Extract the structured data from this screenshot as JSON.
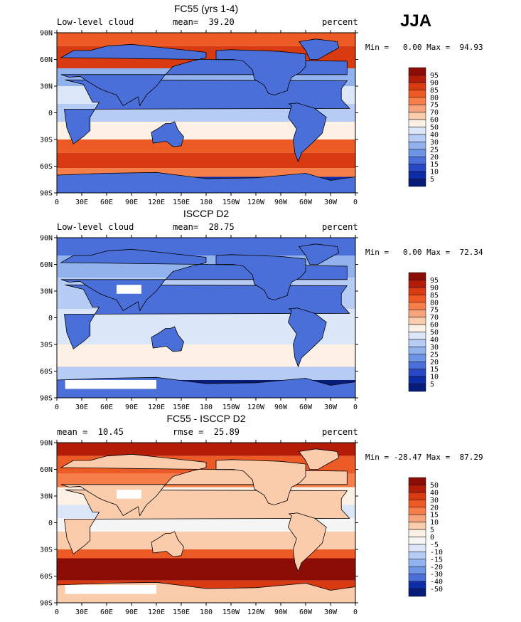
{
  "season": "JJA",
  "panels": [
    {
      "title": "FC55 (yrs 1-4)",
      "left_label": "Low-level cloud",
      "center_label": "mean=  39.20",
      "right_label": "percent",
      "minmax": "Min =   0.00 Max =  94.93",
      "colorbar_labels": [
        "95",
        "90",
        "85",
        "80",
        "75",
        "70",
        "60",
        "50",
        "40",
        "30",
        "25",
        "20",
        "15",
        "10",
        "5"
      ],
      "colors": [
        "#8c0d05",
        "#b31d08",
        "#d83a12",
        "#ec5a26",
        "#f57e4b",
        "#f8a47d",
        "#fbccac",
        "#fdf1e5",
        "#dbe6f8",
        "#b7ccf4",
        "#92b2ee",
        "#6e94e6",
        "#4a6fd9",
        "#2848c6",
        "#0f2ca8",
        "#061c79"
      ]
    },
    {
      "title": "ISCCP D2",
      "left_label": "Low-level cloud",
      "center_label": "mean=  28.75",
      "right_label": "percent",
      "minmax": "Min =   0.00 Max =  72.34",
      "colorbar_labels": [
        "95",
        "90",
        "85",
        "80",
        "75",
        "70",
        "60",
        "50",
        "40",
        "30",
        "25",
        "20",
        "15",
        "10",
        "5"
      ],
      "colors": [
        "#8c0d05",
        "#b31d08",
        "#d83a12",
        "#ec5a26",
        "#f57e4b",
        "#f8a47d",
        "#fbccac",
        "#fdf1e5",
        "#dbe6f8",
        "#b7ccf4",
        "#92b2ee",
        "#6e94e6",
        "#4a6fd9",
        "#2848c6",
        "#0f2ca8",
        "#061c79"
      ]
    },
    {
      "title": "FC55 - ISCCP D2",
      "left_label": "mean =  10.45",
      "center_label": "rmse =  25.89",
      "right_label": "percent",
      "minmax": "Min = -28.47 Max =  87.29",
      "colorbar_labels": [
        "50",
        "40",
        "30",
        "20",
        "15",
        "10",
        "5",
        "0",
        "-5",
        "-10",
        "-15",
        "-20",
        "-30",
        "-40",
        "-50"
      ],
      "colors": [
        "#8c0d05",
        "#b31d08",
        "#d83a12",
        "#ec5a26",
        "#f57e4b",
        "#f8a47d",
        "#fbccac",
        "#fdf1e5",
        "#f5f5f5",
        "#dbe6f8",
        "#b7ccf4",
        "#92b2ee",
        "#6e94e6",
        "#4a6fd9",
        "#0f2ca8",
        "#061c79"
      ]
    }
  ],
  "lat_labels": [
    "90N",
    "60N",
    "30N",
    "0",
    "30S",
    "60S",
    "90S"
  ],
  "lon_labels": [
    "0",
    "30E",
    "60E",
    "90E",
    "120E",
    "150E",
    "180",
    "150W",
    "120W",
    "90W",
    "60W",
    "30W",
    "0"
  ]
}
